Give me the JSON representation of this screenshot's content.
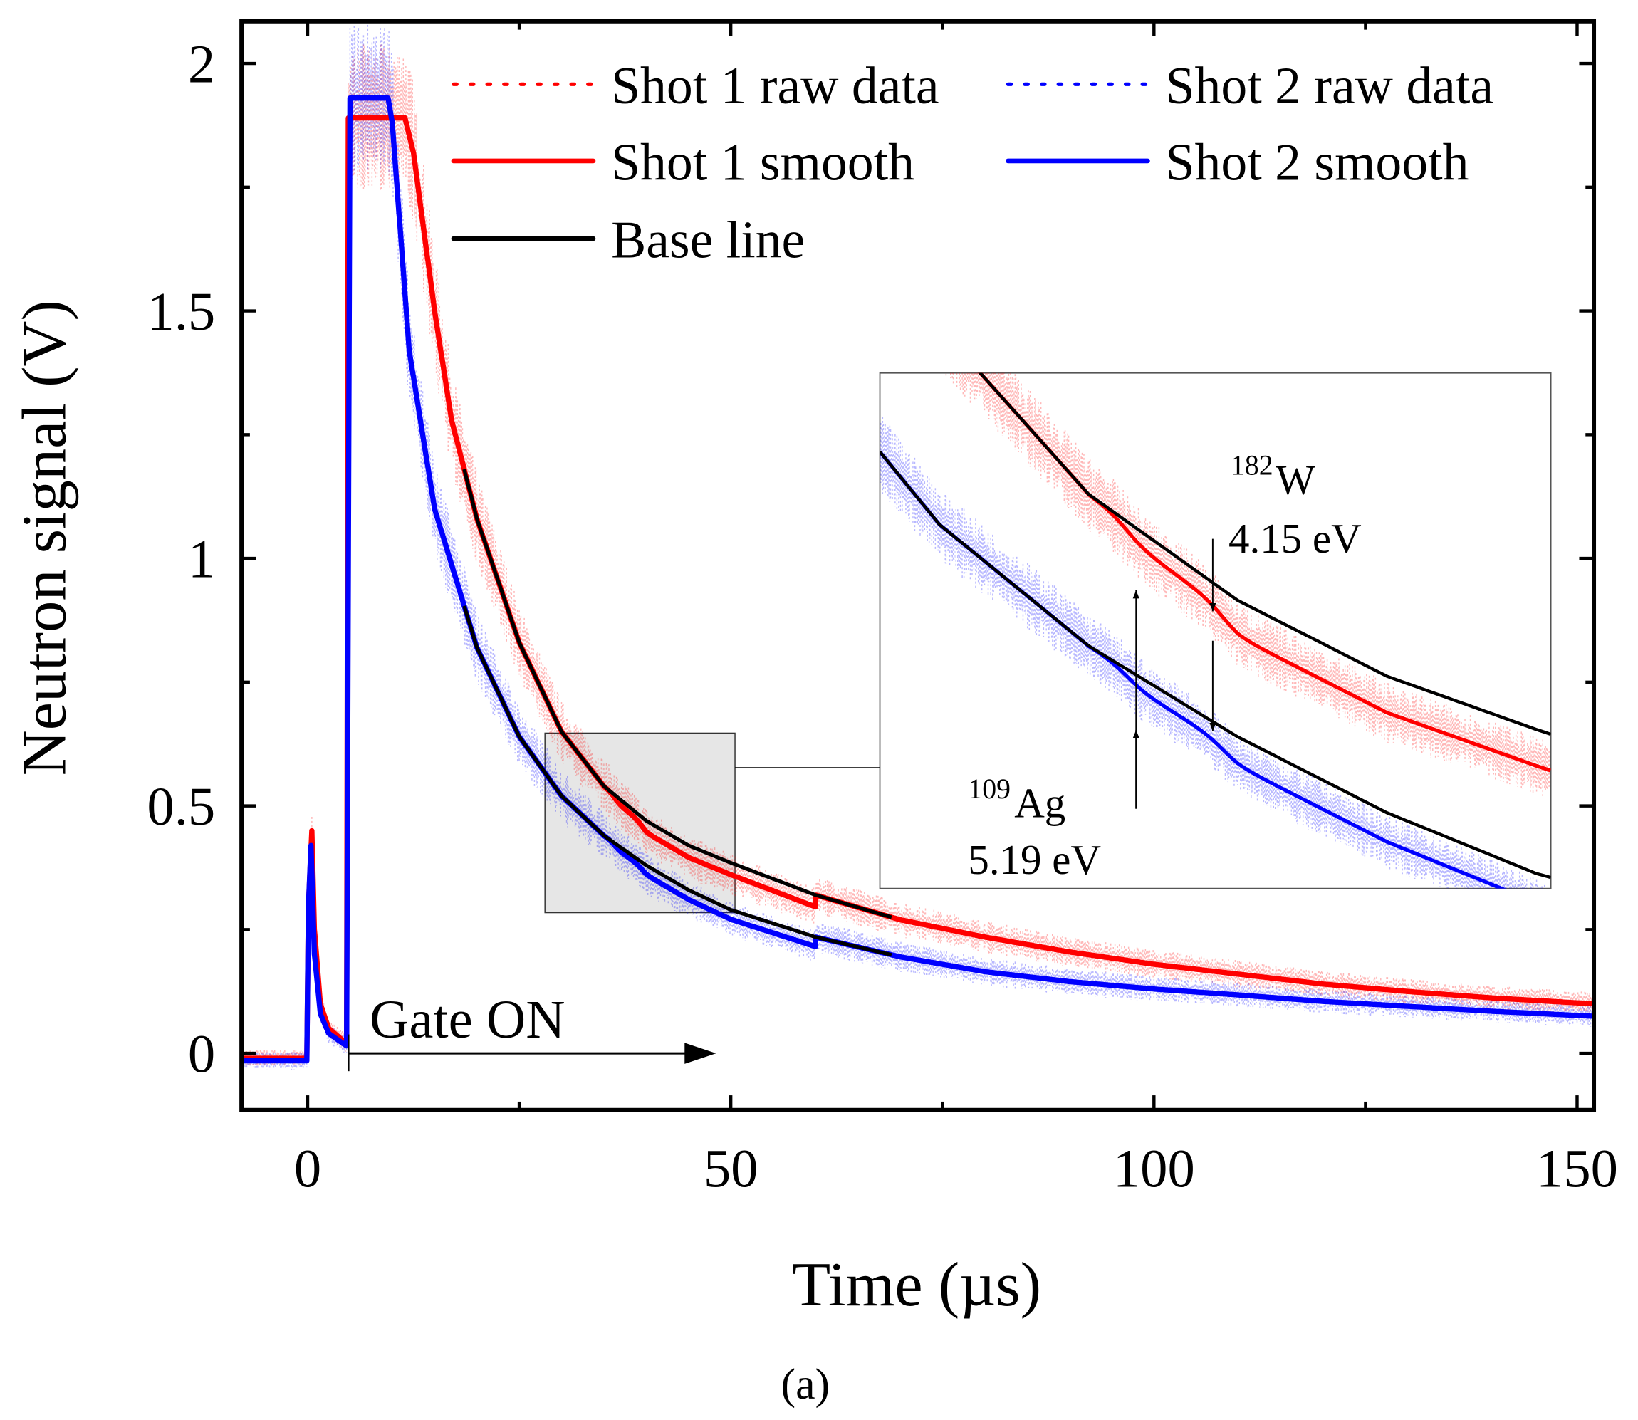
{
  "chart_data": {
    "type": "line",
    "panel_label": "(a)",
    "xlabel": "Time (µs)",
    "ylabel": "Neutron signal (V)",
    "xlim": [
      -8,
      152
    ],
    "ylim": [
      -0.115,
      2.087
    ],
    "xticks": [
      0,
      50,
      100,
      150
    ],
    "xtick_labels": [
      "0",
      "50",
      "100",
      "150"
    ],
    "xminor": [
      25,
      75,
      125
    ],
    "yticks": [
      0,
      0.5,
      1,
      1.5,
      2
    ],
    "ytick_labels": [
      "0",
      "0.5",
      "1",
      "1.5",
      "2"
    ],
    "yminor": [
      0.25,
      0.75,
      1.25,
      1.75
    ],
    "grid": false,
    "legend_position": "top-right",
    "colors": {
      "shot1": "#ff0000",
      "shot2": "#0000ff",
      "baseline": "#000000",
      "inset_box": "#e6e6e6"
    },
    "series": [
      {
        "name": "Shot 1 smooth",
        "raw_name": "Shot 1 raw data",
        "color": "#ff0000",
        "points": [
          [
            -8,
            -0.01
          ],
          [
            -0.1,
            -0.01
          ],
          [
            0.1,
            0.3
          ],
          [
            0.5,
            0.45
          ],
          [
            0.8,
            0.25
          ],
          [
            1.5,
            0.1
          ],
          [
            2.5,
            0.05
          ],
          [
            4.6,
            0.02
          ],
          [
            4.8,
            1.89
          ],
          [
            11.5,
            1.89
          ],
          [
            12.5,
            1.82
          ],
          [
            15,
            1.5
          ],
          [
            17,
            1.28
          ],
          [
            20,
            1.08
          ],
          [
            25,
            0.83
          ],
          [
            30,
            0.65
          ],
          [
            35,
            0.54
          ],
          [
            40,
            0.47
          ],
          [
            45,
            0.42
          ],
          [
            50,
            0.385
          ],
          [
            60,
            0.32
          ],
          [
            70,
            0.27
          ],
          [
            80,
            0.235
          ],
          [
            90,
            0.205
          ],
          [
            100,
            0.18
          ],
          [
            110,
            0.16
          ],
          [
            120,
            0.14
          ],
          [
            130,
            0.125
          ],
          [
            140,
            0.112
          ],
          [
            152,
            0.1
          ]
        ]
      },
      {
        "name": "Shot 2 smooth",
        "raw_name": "Shot 2 raw data",
        "color": "#0000ff",
        "points": [
          [
            -8,
            -0.015
          ],
          [
            -0.1,
            -0.015
          ],
          [
            0.1,
            0.3
          ],
          [
            0.4,
            0.42
          ],
          [
            0.8,
            0.2
          ],
          [
            1.5,
            0.08
          ],
          [
            2.5,
            0.04
          ],
          [
            4.6,
            0.015
          ],
          [
            5,
            1.93
          ],
          [
            9.5,
            1.93
          ],
          [
            10,
            1.88
          ],
          [
            12,
            1.42
          ],
          [
            15,
            1.1
          ],
          [
            20,
            0.82
          ],
          [
            25,
            0.64
          ],
          [
            30,
            0.52
          ],
          [
            35,
            0.44
          ],
          [
            40,
            0.38
          ],
          [
            45,
            0.33
          ],
          [
            50,
            0.29
          ],
          [
            60,
            0.235
          ],
          [
            70,
            0.195
          ],
          [
            80,
            0.165
          ],
          [
            90,
            0.145
          ],
          [
            100,
            0.13
          ],
          [
            110,
            0.118
          ],
          [
            120,
            0.105
          ],
          [
            130,
            0.095
          ],
          [
            140,
            0.085
          ],
          [
            152,
            0.075
          ]
        ]
      }
    ],
    "baseline_range": [
      18.5,
      69
    ],
    "resonance_dips": [
      {
        "t": 36.3,
        "depth": 0.012
      },
      {
        "t": 39.5,
        "depth": 0.012
      }
    ],
    "legend": [
      "Shot 1 raw data",
      "Shot 2 raw data",
      "Shot 1 smooth",
      "Shot 2 smooth",
      "Base line"
    ],
    "annotations": {
      "gate": "Gate ON",
      "w_mass": "182",
      "w_elem": "W",
      "w_energy": "4.15 eV",
      "ag_mass": "109",
      "ag_elem": "Ag",
      "ag_energy": "5.19 eV"
    },
    "inset": {
      "xlim": [
        28,
        50.5
      ],
      "ylim": [
        0.28,
        0.62
      ]
    }
  }
}
